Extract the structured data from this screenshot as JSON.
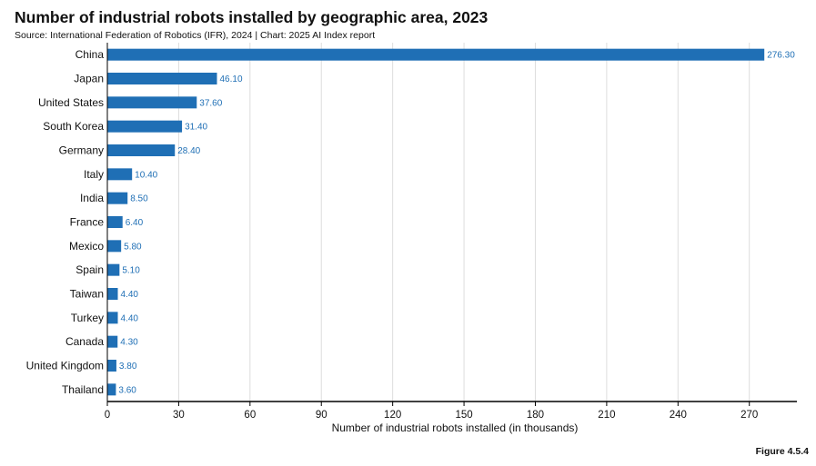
{
  "header": {
    "title": "Number of industrial robots installed by geographic area, 2023",
    "source": "Source: International Federation of Robotics (IFR), 2024 | Chart: 2025 AI Index report"
  },
  "figure_label": "Figure 4.5.4",
  "colors": {
    "bar": "#1f6fb5",
    "value_label": "#1f6fb5",
    "grid": "#dddddd",
    "axis": "#000000"
  },
  "chart_data": {
    "type": "bar",
    "orientation": "horizontal",
    "categories": [
      "China",
      "Japan",
      "United States",
      "South Korea",
      "Germany",
      "Italy",
      "India",
      "France",
      "Mexico",
      "Spain",
      "Taiwan",
      "Turkey",
      "Canada",
      "United Kingdom",
      "Thailand"
    ],
    "values": [
      276.3,
      46.1,
      37.6,
      31.4,
      28.4,
      10.4,
      8.5,
      6.4,
      5.8,
      5.1,
      4.4,
      4.4,
      4.3,
      3.8,
      3.6
    ],
    "value_labels": [
      "276.30",
      "46.10",
      "37.60",
      "31.40",
      "28.40",
      "10.40",
      "8.50",
      "6.40",
      "5.80",
      "5.10",
      "4.40",
      "4.40",
      "4.30",
      "3.80",
      "3.60"
    ],
    "xlabel": "Number of industrial robots installed (in thousands)",
    "xlim": [
      0,
      290
    ],
    "xticks": [
      0,
      30,
      60,
      90,
      120,
      150,
      180,
      210,
      240,
      270
    ],
    "grid": "vertical gridlines"
  }
}
